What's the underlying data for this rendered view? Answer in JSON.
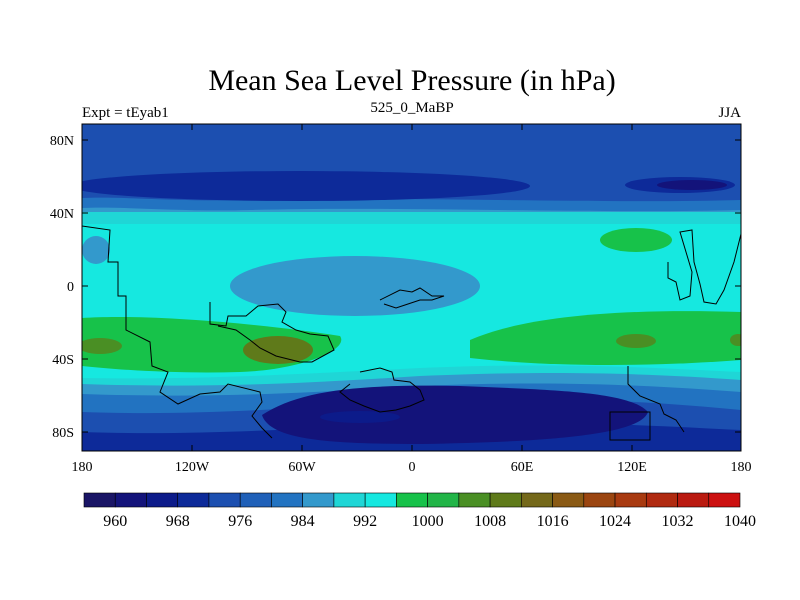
{
  "title": "Mean Sea Level Pressure (in hPa)",
  "left_subtitle": "Expt = tEyab1",
  "center_subtitle": "525_0_MaBP",
  "right_subtitle": "JJA",
  "lat_ticks": [
    "80N",
    "40N",
    "0",
    "40S",
    "80S"
  ],
  "lon_ticks": [
    "180",
    "120W",
    "60W",
    "0",
    "60E",
    "120E",
    "180"
  ],
  "colorbar": {
    "colors": [
      "#1a1566",
      "#13137a",
      "#0c1b8a",
      "#0d2a99",
      "#1c4fb0",
      "#1f60b8",
      "#2273c1",
      "#3399cc",
      "#1fd6d6",
      "#16e8e0",
      "#17c24a",
      "#22b548",
      "#4a8f24",
      "#5f7a1a",
      "#74681a",
      "#8a5a14",
      "#9b4510",
      "#a83a10",
      "#b02a10",
      "#ba1a10",
      "#cc1010"
    ],
    "labels": [
      "960",
      "968",
      "976",
      "984",
      "992",
      "1000",
      "1008",
      "1016",
      "1024",
      "1032",
      "1040"
    ]
  },
  "palette": {
    "v972": "#0d2a99",
    "v980": "#1c4fb0",
    "v988": "#2273c1",
    "v992": "#3399cc",
    "v996": "#1fd6d6",
    "v1004": "#16e8e0",
    "v1008": "#17c24a",
    "v1012": "#4a8f24",
    "v1016": "#5f7a1a",
    "low": "#13137a",
    "deep": "#0c1b8a"
  }
}
